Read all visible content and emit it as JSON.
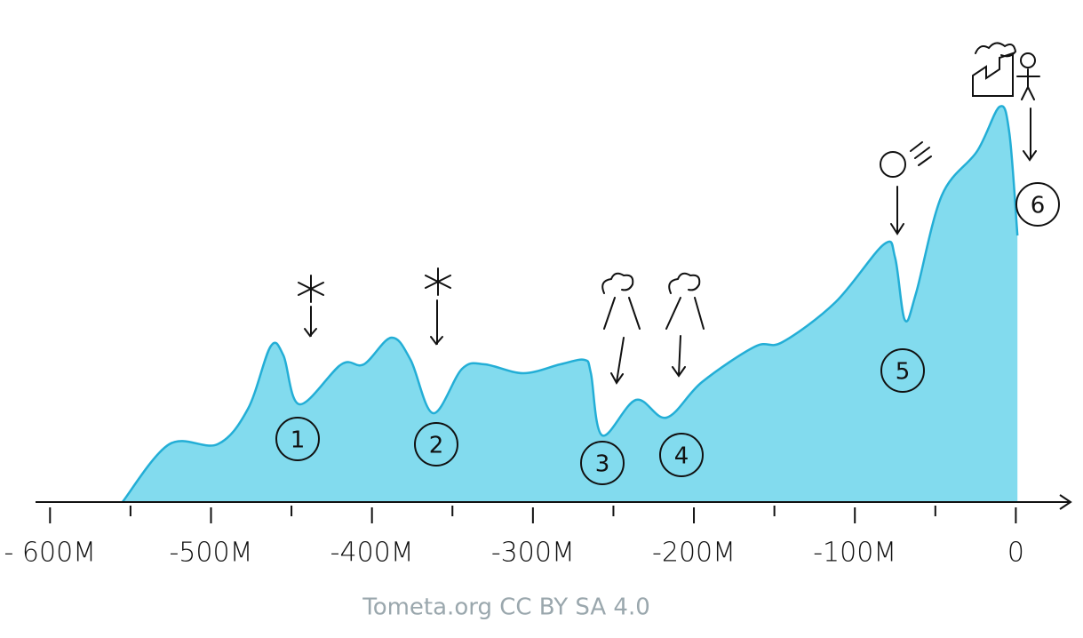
{
  "chart_data": {
    "type": "area",
    "color": "#82dbee",
    "line_color": "#23aed6",
    "x": [
      -555,
      -526,
      -496,
      -477,
      -463,
      -455,
      -445,
      -419,
      -405,
      -388,
      -376,
      -362,
      -344,
      -330,
      -306,
      -283,
      -268,
      -264,
      -257,
      -236,
      -217,
      -195,
      -162,
      -145,
      -112,
      -82,
      -75,
      -69,
      -62,
      -46,
      -24,
      -10,
      -4,
      1
    ],
    "values": [
      0,
      13,
      13,
      21,
      35,
      33,
      22,
      31,
      31,
      37,
      32,
      20,
      30,
      31,
      29,
      31,
      32,
      29,
      15,
      23,
      19,
      27,
      35,
      36,
      45,
      58,
      55,
      41,
      47,
      69,
      79,
      89,
      83,
      60
    ],
    "xlim": [
      -609,
      34
    ],
    "ylim": [
      0,
      100
    ],
    "xticks": [
      {
        "value": -600,
        "label": "- 600M"
      },
      {
        "value": -500,
        "label": "-500M"
      },
      {
        "value": -400,
        "label": "-400M"
      },
      {
        "value": -300,
        "label": "-300M"
      },
      {
        "value": -200,
        "label": "-200M"
      },
      {
        "value": -100,
        "label": "-100M"
      },
      0
    ],
    "xminorticks": [
      -550,
      -450,
      -350,
      -250,
      -150,
      -50
    ],
    "annotations": [
      "1",
      "2",
      "3",
      "4",
      "5",
      "6"
    ],
    "credit": "Tometa.org  CC BY SA 4.0"
  }
}
